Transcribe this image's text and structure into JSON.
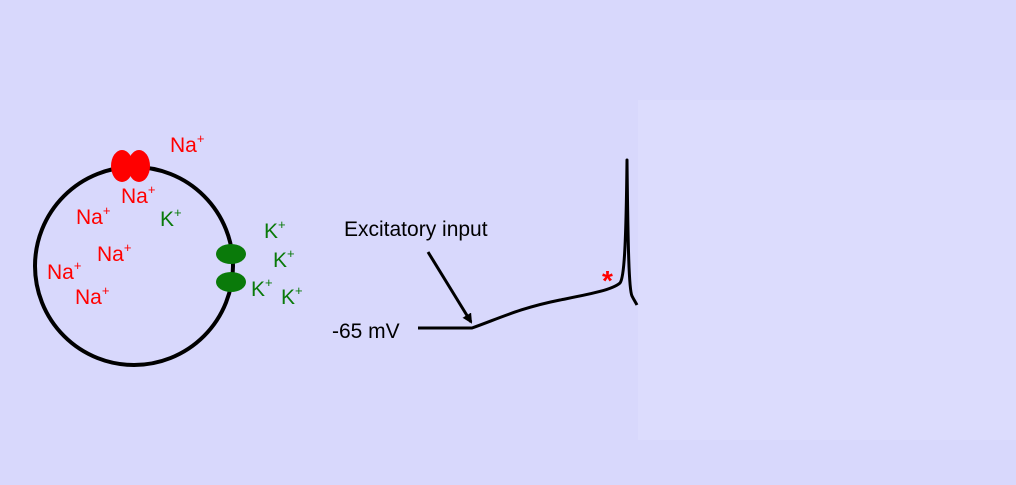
{
  "colors": {
    "background": "#d8d8fc",
    "sodium": "#ff0000",
    "potassium": "#0a7a0a",
    "trace": "#000000",
    "threshold_marker": "#ff0000"
  },
  "cell": {
    "sodium_ion": {
      "symbol": "Na",
      "charge": "+"
    },
    "potassium_ion": {
      "symbol": "K",
      "charge": "+"
    },
    "sodium_channel": "sodium-channel",
    "potassium_channel": "potassium-channel"
  },
  "trace": {
    "resting_label": "-65 mV",
    "input_label": "Excitatory input",
    "threshold_marker": "*"
  }
}
